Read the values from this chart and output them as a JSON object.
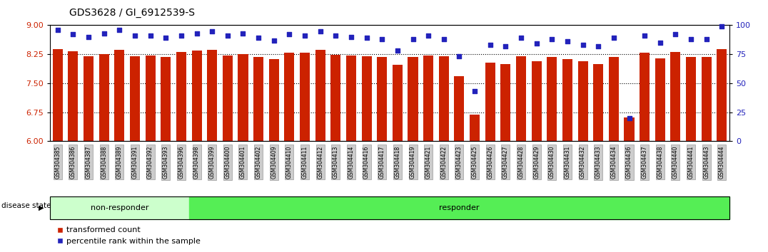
{
  "title": "GDS3628 / GI_6912539-S",
  "categories": [
    "GSM304385",
    "GSM304386",
    "GSM304387",
    "GSM304388",
    "GSM304389",
    "GSM304391",
    "GSM304392",
    "GSM304393",
    "GSM304396",
    "GSM304398",
    "GSM304399",
    "GSM304400",
    "GSM304401",
    "GSM304402",
    "GSM304409",
    "GSM304410",
    "GSM304411",
    "GSM304412",
    "GSM304413",
    "GSM304414",
    "GSM304416",
    "GSM304417",
    "GSM304418",
    "GSM304419",
    "GSM304421",
    "GSM304422",
    "GSM304423",
    "GSM304425",
    "GSM304426",
    "GSM304427",
    "GSM304428",
    "GSM304429",
    "GSM304430",
    "GSM304431",
    "GSM304432",
    "GSM304433",
    "GSM304434",
    "GSM304436",
    "GSM304437",
    "GSM304438",
    "GSM304440",
    "GSM304441",
    "GSM304443",
    "GSM304444"
  ],
  "bar_values": [
    8.38,
    8.33,
    8.2,
    8.25,
    8.37,
    8.2,
    8.22,
    8.17,
    8.3,
    8.35,
    8.37,
    8.22,
    8.26,
    8.17,
    8.12,
    8.29,
    8.28,
    8.37,
    8.24,
    8.22,
    8.2,
    8.17,
    7.97,
    8.17,
    8.22,
    8.2,
    7.68,
    6.68,
    8.04,
    8.0,
    8.2,
    8.07,
    8.17,
    8.13,
    8.07,
    8.0,
    8.18,
    6.62,
    8.28,
    8.14,
    8.3,
    8.18,
    8.17,
    8.38
  ],
  "percentile_values": [
    96,
    92,
    90,
    93,
    96,
    91,
    91,
    89,
    91,
    93,
    95,
    91,
    93,
    89,
    87,
    92,
    91,
    95,
    91,
    90,
    89,
    88,
    78,
    88,
    91,
    88,
    73,
    43,
    83,
    82,
    89,
    84,
    88,
    86,
    83,
    82,
    89,
    20,
    91,
    85,
    92,
    88,
    88,
    99
  ],
  "non_responder_count": 9,
  "bar_color": "#CC2200",
  "percentile_color": "#2222BB",
  "bg_color": "#FFFFFF",
  "ylim_left": [
    6.0,
    9.0
  ],
  "ylim_right": [
    0,
    100
  ],
  "yticks_left": [
    6.0,
    6.75,
    7.5,
    8.25,
    9.0
  ],
  "yticks_right": [
    0,
    25,
    50,
    75,
    100
  ],
  "non_responder_color": "#CCFFCC",
  "responder_color": "#55EE55",
  "label_bar": "transformed count",
  "label_percentile": "percentile rank within the sample"
}
